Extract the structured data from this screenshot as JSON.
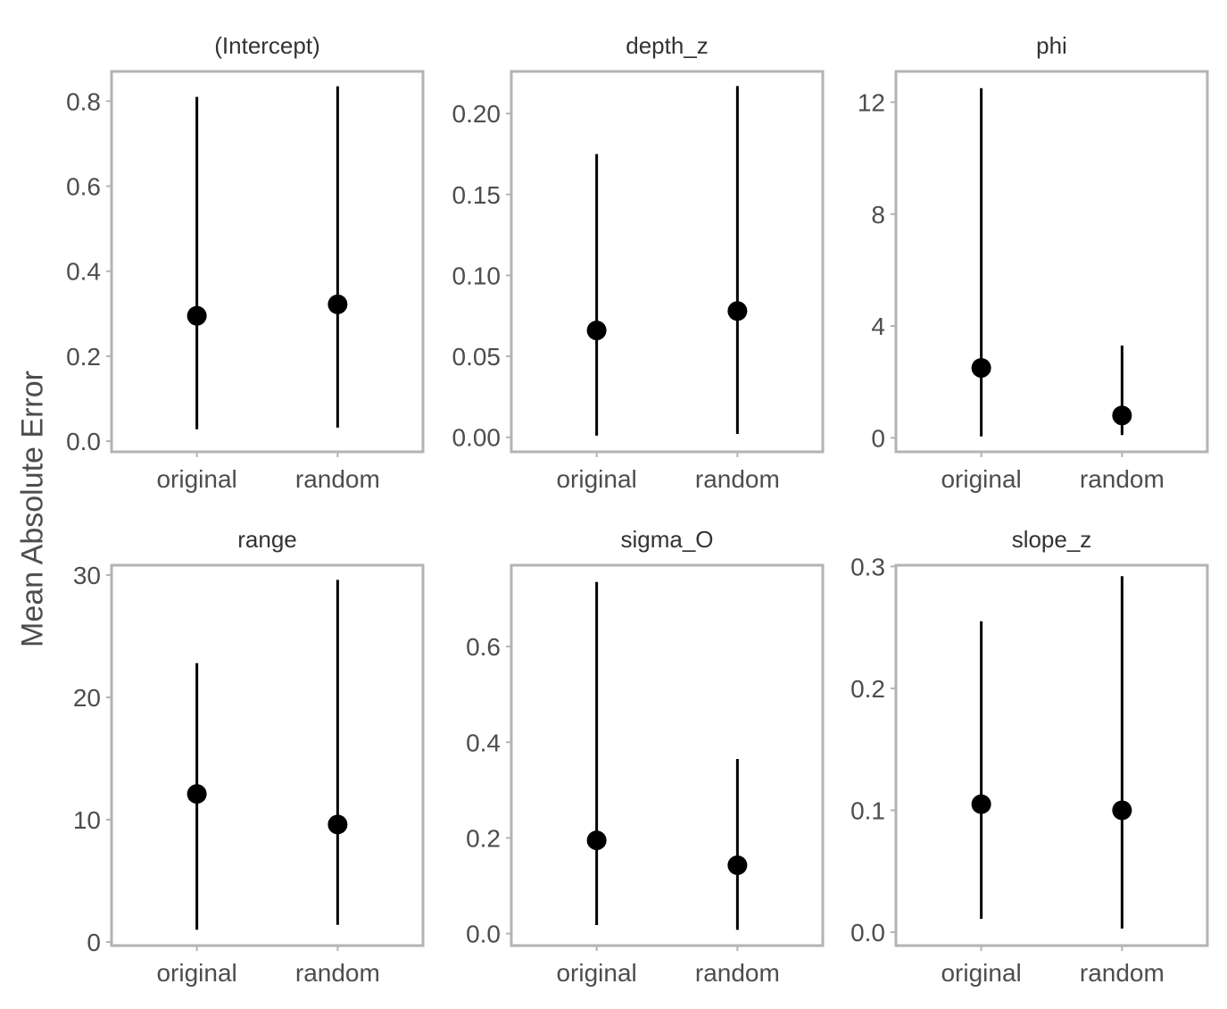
{
  "figure": {
    "ylabel": "Mean Absolute Error"
  },
  "chart_data": [
    {
      "type": "pointrange",
      "title": "(Intercept)",
      "categories": [
        "original",
        "random"
      ],
      "values": [
        0.295,
        0.322
      ],
      "lower": [
        0.028,
        0.032
      ],
      "upper": [
        0.81,
        0.835
      ],
      "yticks": [
        0.0,
        0.2,
        0.4,
        0.6,
        0.8
      ],
      "ytick_labels": [
        "0.0",
        "0.2",
        "0.4",
        "0.6",
        "0.8"
      ],
      "ylim": [
        -0.025,
        0.87
      ]
    },
    {
      "type": "pointrange",
      "title": "depth_z",
      "categories": [
        "original",
        "random"
      ],
      "values": [
        0.066,
        0.078
      ],
      "lower": [
        0.001,
        0.002
      ],
      "upper": [
        0.175,
        0.217
      ],
      "yticks": [
        0.0,
        0.05,
        0.1,
        0.15,
        0.2
      ],
      "ytick_labels": [
        "0.00",
        "0.05",
        "0.10",
        "0.15",
        "0.20"
      ],
      "ylim": [
        -0.009,
        0.226
      ]
    },
    {
      "type": "pointrange",
      "title": "phi",
      "categories": [
        "original",
        "random"
      ],
      "values": [
        2.5,
        0.8
      ],
      "lower": [
        0.05,
        0.1
      ],
      "upper": [
        12.5,
        3.3
      ],
      "yticks": [
        0,
        4,
        8,
        12
      ],
      "ytick_labels": [
        "0",
        "4",
        "8",
        "12"
      ],
      "ylim": [
        -0.5,
        13.1
      ]
    },
    {
      "type": "pointrange",
      "title": "range",
      "categories": [
        "original",
        "random"
      ],
      "values": [
        12.1,
        9.6
      ],
      "lower": [
        1.0,
        1.4
      ],
      "upper": [
        22.8,
        29.6
      ],
      "yticks": [
        0,
        10,
        20,
        30
      ],
      "ytick_labels": [
        "0",
        "10",
        "20",
        "30"
      ],
      "ylim": [
        -0.3,
        30.8
      ]
    },
    {
      "type": "pointrange",
      "title": "sigma_O",
      "categories": [
        "original",
        "random"
      ],
      "values": [
        0.195,
        0.143
      ],
      "lower": [
        0.018,
        0.008
      ],
      "upper": [
        0.735,
        0.365
      ],
      "yticks": [
        0.0,
        0.2,
        0.4,
        0.6
      ],
      "ytick_labels": [
        "0.0",
        "0.2",
        "0.4",
        "0.6"
      ],
      "ylim": [
        -0.025,
        0.77
      ]
    },
    {
      "type": "pointrange",
      "title": "slope_z",
      "categories": [
        "original",
        "random"
      ],
      "values": [
        0.105,
        0.1
      ],
      "lower": [
        0.011,
        0.003
      ],
      "upper": [
        0.255,
        0.292
      ],
      "yticks": [
        0.0,
        0.1,
        0.2,
        0.3
      ],
      "ytick_labels": [
        "0.0",
        "0.1",
        "0.2",
        "0.3"
      ],
      "ylim": [
        -0.011,
        0.301
      ]
    }
  ]
}
